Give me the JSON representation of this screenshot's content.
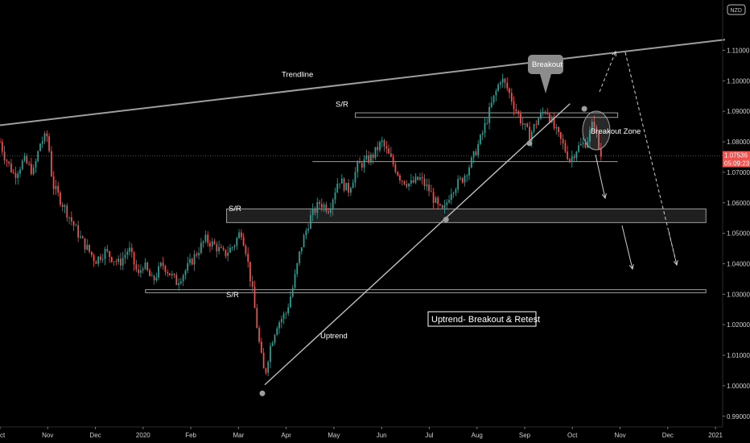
{
  "chart_data": {
    "type": "candlestick",
    "symbol_badge": "NZD",
    "currency": "NZD",
    "y_ticks": [
      "1.11000",
      "1.10000",
      "1.09000",
      "1.08000",
      "1.07000",
      "1.06000",
      "1.05000",
      "1.04000",
      "1.03000",
      "1.02000",
      "1.01000",
      "1.00000",
      "0.99000"
    ],
    "y_tick_values": [
      1.11,
      1.1,
      1.09,
      1.08,
      1.07,
      1.06,
      1.05,
      1.04,
      1.03,
      1.02,
      1.01,
      1.0,
      0.99
    ],
    "x_ticks": [
      "Oct",
      "Nov",
      "Dec",
      "2020",
      "Feb",
      "Mar",
      "Apr",
      "May",
      "Jun",
      "Jul",
      "Aug",
      "Sep",
      "Oct",
      "Nov",
      "Dec",
      "2021"
    ],
    "x_tick_months": [
      0,
      1,
      2,
      3,
      4,
      5,
      6,
      7,
      8,
      9,
      10,
      11,
      12,
      13,
      14,
      15
    ],
    "ylim": [
      0.9865,
      1.1265
    ],
    "xlim_months": [
      0.0,
      15.15
    ],
    "last_price": "1.07536",
    "last_price_value": 1.07536,
    "countdown": "05:09:23",
    "price_path": [
      {
        "m": 0.0,
        "p": 1.08
      },
      {
        "m": 0.1,
        "p": 1.075
      },
      {
        "m": 0.3,
        "p": 1.069
      },
      {
        "m": 0.5,
        "p": 1.074
      },
      {
        "m": 0.7,
        "p": 1.07
      },
      {
        "m": 0.85,
        "p": 1.08
      },
      {
        "m": 1.0,
        "p": 1.082
      },
      {
        "m": 1.1,
        "p": 1.066
      },
      {
        "m": 1.3,
        "p": 1.06
      },
      {
        "m": 1.5,
        "p": 1.054
      },
      {
        "m": 1.7,
        "p": 1.048
      },
      {
        "m": 2.0,
        "p": 1.041
      },
      {
        "m": 2.2,
        "p": 1.044
      },
      {
        "m": 2.5,
        "p": 1.04
      },
      {
        "m": 2.7,
        "p": 1.045
      },
      {
        "m": 2.9,
        "p": 1.036
      },
      {
        "m": 3.0,
        "p": 1.04
      },
      {
        "m": 3.2,
        "p": 1.034
      },
      {
        "m": 3.4,
        "p": 1.04
      },
      {
        "m": 3.7,
        "p": 1.034
      },
      {
        "m": 3.9,
        "p": 1.038
      },
      {
        "m": 4.1,
        "p": 1.043
      },
      {
        "m": 4.3,
        "p": 1.048
      },
      {
        "m": 4.5,
        "p": 1.046
      },
      {
        "m": 4.7,
        "p": 1.043
      },
      {
        "m": 4.9,
        "p": 1.046
      },
      {
        "m": 5.05,
        "p": 1.051
      },
      {
        "m": 5.15,
        "p": 1.045
      },
      {
        "m": 5.3,
        "p": 1.03
      },
      {
        "m": 5.45,
        "p": 1.012
      },
      {
        "m": 5.55,
        "p": 1.003
      },
      {
        "m": 5.65,
        "p": 1.012
      },
      {
        "m": 5.8,
        "p": 1.02
      },
      {
        "m": 6.0,
        "p": 1.024
      },
      {
        "m": 6.15,
        "p": 1.033
      },
      {
        "m": 6.3,
        "p": 1.045
      },
      {
        "m": 6.5,
        "p": 1.055
      },
      {
        "m": 6.7,
        "p": 1.06
      },
      {
        "m": 6.9,
        "p": 1.058
      },
      {
        "m": 7.1,
        "p": 1.068
      },
      {
        "m": 7.3,
        "p": 1.064
      },
      {
        "m": 7.5,
        "p": 1.072
      },
      {
        "m": 7.8,
        "p": 1.075
      },
      {
        "m": 8.0,
        "p": 1.08
      },
      {
        "m": 8.2,
        "p": 1.074
      },
      {
        "m": 8.4,
        "p": 1.068
      },
      {
        "m": 8.6,
        "p": 1.066
      },
      {
        "m": 8.8,
        "p": 1.068
      },
      {
        "m": 9.0,
        "p": 1.064
      },
      {
        "m": 9.2,
        "p": 1.058
      },
      {
        "m": 9.3,
        "p": 1.057
      },
      {
        "m": 9.45,
        "p": 1.064
      },
      {
        "m": 9.7,
        "p": 1.068
      },
      {
        "m": 9.9,
        "p": 1.074
      },
      {
        "m": 10.1,
        "p": 1.082
      },
      {
        "m": 10.3,
        "p": 1.092
      },
      {
        "m": 10.5,
        "p": 1.101
      },
      {
        "m": 10.65,
        "p": 1.097
      },
      {
        "m": 10.8,
        "p": 1.091
      },
      {
        "m": 10.95,
        "p": 1.086
      },
      {
        "m": 11.1,
        "p": 1.082
      },
      {
        "m": 11.3,
        "p": 1.088
      },
      {
        "m": 11.45,
        "p": 1.091
      },
      {
        "m": 11.6,
        "p": 1.085
      },
      {
        "m": 11.8,
        "p": 1.079
      },
      {
        "m": 11.95,
        "p": 1.074
      },
      {
        "m": 12.1,
        "p": 1.078
      },
      {
        "m": 12.3,
        "p": 1.08
      },
      {
        "m": 12.45,
        "p": 1.087
      },
      {
        "m": 12.55,
        "p": 1.078
      },
      {
        "m": 12.6,
        "p": 1.07536
      }
    ],
    "candle_count": 270,
    "colors": {
      "up": "#26a69a",
      "down": "#ef5350",
      "background": "#000000",
      "price_label": "#ef5350"
    }
  },
  "annotations": {
    "trendline_label": "Trendline",
    "sr_labels": [
      "S/R",
      "S/R",
      "S/R"
    ],
    "breakout_label": "Breakout",
    "breakout_zone_label": "Breakout Zone",
    "uptrend_label": "Uptrend",
    "title_box": "Uptrend- Breakout & Retest"
  },
  "levels": {
    "sr_upper_band": [
      1.088,
      1.0895
    ],
    "sr_lower_line": 1.0735,
    "sr_middle_band": [
      1.0535,
      1.058
    ],
    "sr_bottom_band": [
      1.0305,
      1.0315
    ],
    "trendline": {
      "from": {
        "m": -0.5,
        "p": 1.0845
      },
      "to": {
        "m": 15.2,
        "p": 1.1135
      }
    },
    "uptrend_line": {
      "from": {
        "m": 5.55,
        "p": 1.0003
      },
      "to": {
        "m": 11.95,
        "p": 1.0925
      }
    }
  }
}
